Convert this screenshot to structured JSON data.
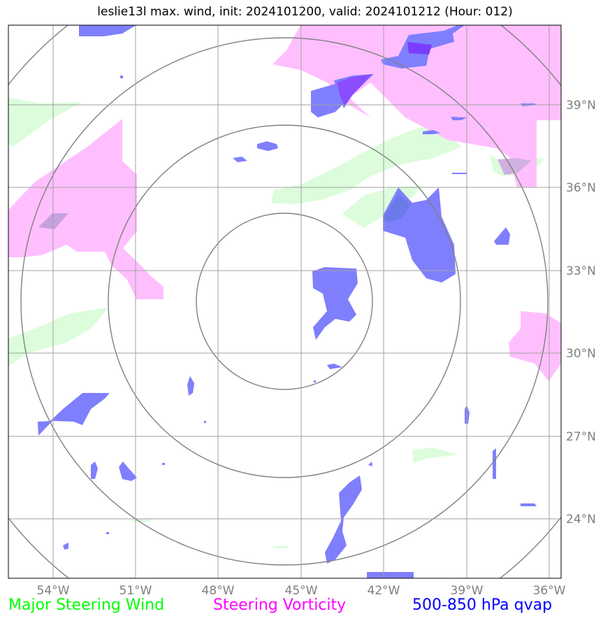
{
  "title": "leslie13l max. wind, init: 2024101200, valid: 2024101212 (Hour: 012)",
  "longitude_labels": [
    "54°W",
    "51°W",
    "48°W",
    "45°W",
    "42°W",
    "39°W",
    "36°W"
  ],
  "latitude_labels": [
    "39°N",
    "36°N",
    "33°N",
    "30°N",
    "27°N",
    "24°N"
  ],
  "legend": [
    {
      "label": "Major Steering Wind",
      "color": "#00ff00"
    },
    {
      "label": "Steering Vorticity",
      "color": "#ff00ff"
    },
    {
      "label": "500-850 hPa qvap",
      "color": "#0000ff"
    }
  ],
  "colors": {
    "steering_wind_fill": "#dcfcdc",
    "vorticity_fill": "#ffbfff",
    "qvap_fill": "#7f7ffd",
    "grid": "#a0a0a0",
    "range_rings": "#808080"
  }
}
